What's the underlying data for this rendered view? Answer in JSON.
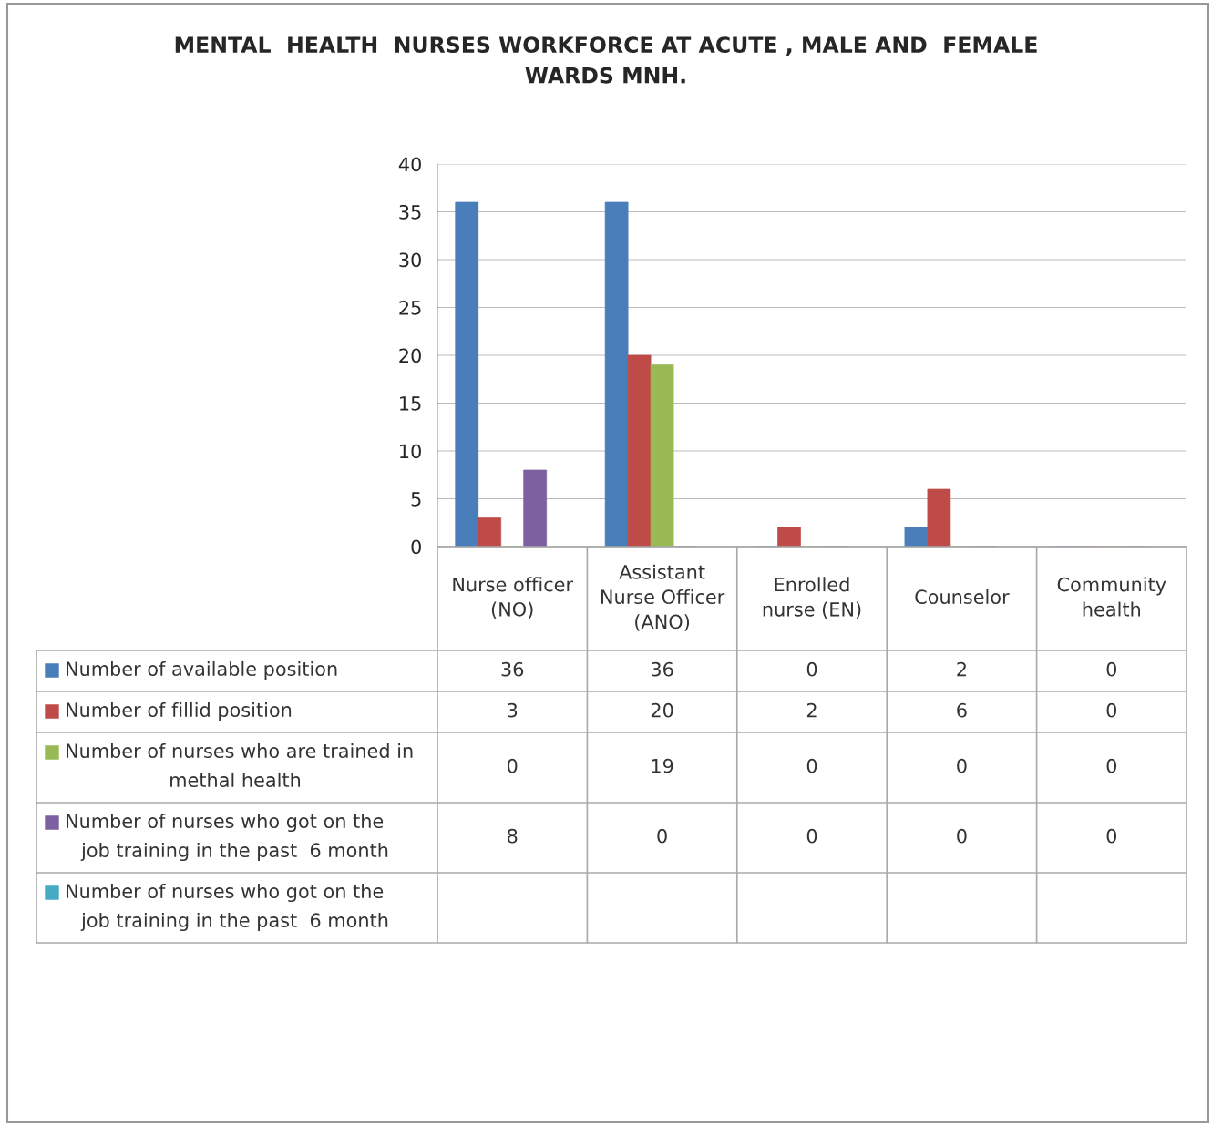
{
  "chart_data": {
    "type": "bar",
    "title": "MENTAL  HEALTH  NURSES WORKFORCE AT ACUTE , MALE AND  FEMALE\nWARDS MNH.",
    "categories": [
      "Nurse officer\n(NO)",
      "Assistant\nNurse Officer\n(ANO)",
      "Enrolled\nnurse (EN)",
      "Counselor",
      "Community\nhealth"
    ],
    "series": [
      {
        "name": "Number of available position",
        "color": "#4a7ebb",
        "values": [
          36,
          36,
          0,
          2,
          0
        ]
      },
      {
        "name": "Number of fillid position",
        "color": "#be4b48",
        "values": [
          3,
          20,
          2,
          6,
          0
        ]
      },
      {
        "name": "Number of nurses who are trained in\nmethal health",
        "color": "#98b954",
        "values": [
          0,
          19,
          0,
          0,
          0
        ]
      },
      {
        "name": "Number of nurses who got on the\njob training in the past  6 month",
        "color": "#7d60a0",
        "values": [
          8,
          0,
          0,
          0,
          0
        ]
      },
      {
        "name": "Number of nurses who got on the\njob training in the past  6 month",
        "color": "#46aac5",
        "values": [
          null,
          null,
          null,
          null,
          null
        ]
      }
    ],
    "ylim": [
      0,
      40
    ],
    "yticks": [
      0,
      5,
      10,
      15,
      20,
      25,
      30,
      35,
      40
    ],
    "grid": "y",
    "data_labels": true,
    "legend": "bottom"
  }
}
